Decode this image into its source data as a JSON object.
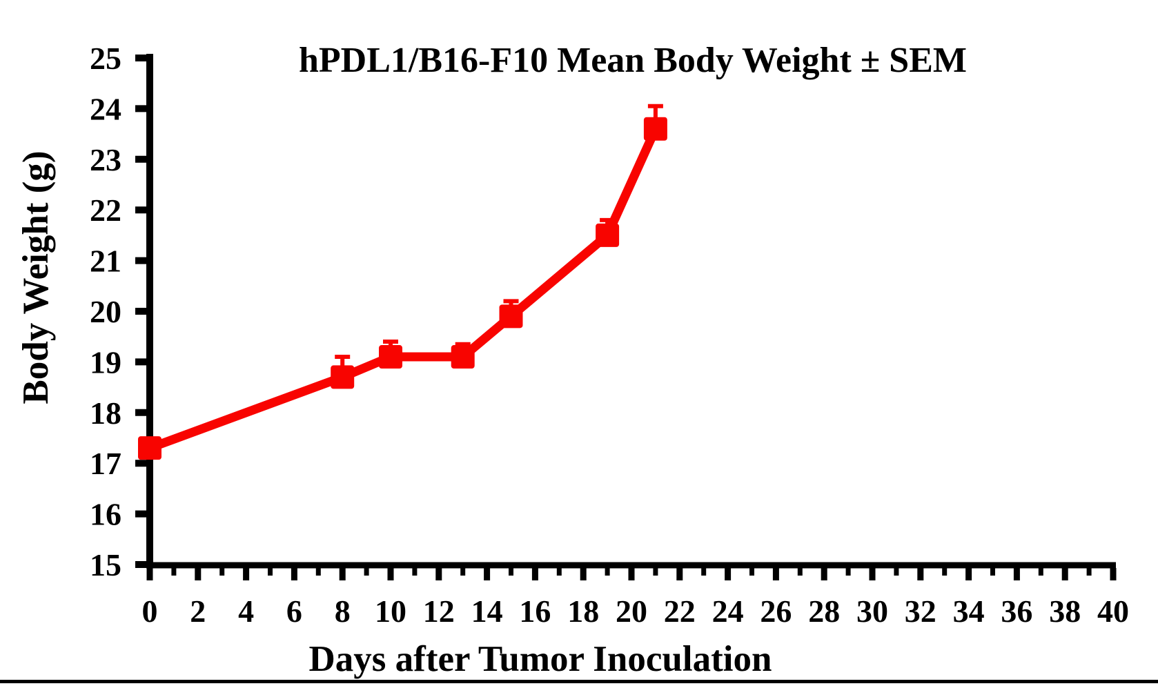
{
  "page": {
    "background_color": "#ffffff",
    "foreground_color": "#000000"
  },
  "chart_data": {
    "type": "line",
    "title": "hPDL1/B16-F10 Mean Body Weight ± SEM",
    "xlabel": "Days after Tumor Inoculation",
    "ylabel": "Body Weight (g)",
    "series": [
      {
        "name": "hPDL1/B16-F10",
        "x": [
          0,
          8,
          10,
          13,
          15,
          19,
          21
        ],
        "y": [
          17.3,
          18.7,
          19.1,
          19.1,
          19.9,
          21.5,
          23.6
        ],
        "sem_upper": [
          0,
          0.4,
          0.3,
          0.25,
          0.3,
          0.3,
          0.45
        ],
        "color": "#f80400",
        "marker": "square"
      }
    ],
    "xlim": [
      0,
      40
    ],
    "ylim": [
      15,
      25
    ],
    "xticks": [
      0,
      2,
      4,
      6,
      8,
      10,
      12,
      14,
      16,
      18,
      20,
      22,
      24,
      26,
      28,
      30,
      32,
      34,
      36,
      38,
      40
    ],
    "xminor_step": 1,
    "yticks": [
      15,
      16,
      17,
      18,
      19,
      20,
      21,
      22,
      23,
      24,
      25
    ],
    "grid": false,
    "legend_position": "none",
    "error_bars": "upper-sem-only",
    "axis_color": "#000000"
  }
}
